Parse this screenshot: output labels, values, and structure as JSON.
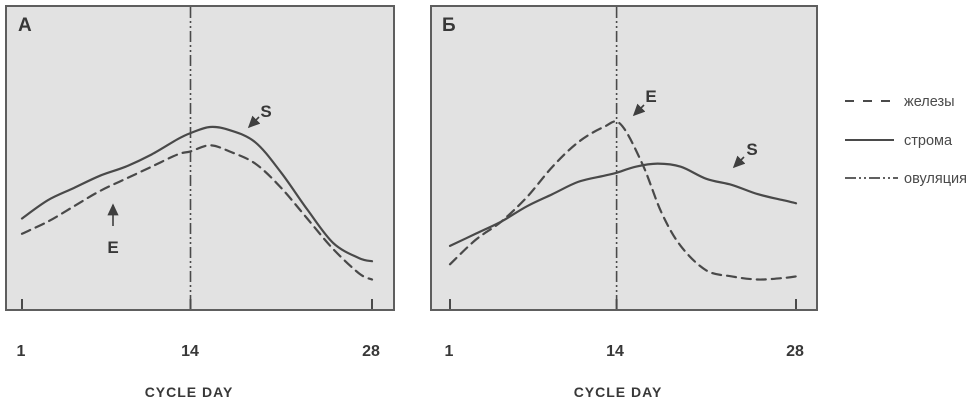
{
  "figure": {
    "legend": {
      "position": "right",
      "items": [
        {
          "label": "железы",
          "style": "dashed"
        },
        {
          "label": "строма",
          "style": "solid"
        },
        {
          "label": "овуляция",
          "style": "dashdot"
        }
      ]
    },
    "colors": {
      "panel_bg": "#e2e2e2",
      "panel_border": "#5e5e5e",
      "line": "#494949",
      "text": "#383838"
    }
  },
  "chart_data": [
    {
      "panel": "А",
      "type": "line",
      "xlabel": "CYCLE DAY",
      "xlim": [
        1,
        28
      ],
      "x_ticks": [
        1,
        14,
        28
      ],
      "ovulation_day": 14,
      "grid": false,
      "ylabel": "",
      "series": [
        {
          "name": "железы",
          "letter": "E",
          "style": "dashed",
          "points": [
            [
              1,
              25
            ],
            [
              3,
              29
            ],
            [
              5,
              34
            ],
            [
              7,
              39
            ],
            [
              9,
              43
            ],
            [
              11,
              47
            ],
            [
              13,
              51
            ],
            [
              14,
              52
            ],
            [
              15.5,
              54
            ],
            [
              17,
              52
            ],
            [
              19,
              48
            ],
            [
              21,
              40
            ],
            [
              23,
              30
            ],
            [
              25,
              20
            ],
            [
              27,
              12
            ],
            [
              28,
              10
            ]
          ]
        },
        {
          "name": "строма",
          "letter": "S",
          "style": "solid",
          "points": [
            [
              1,
              30
            ],
            [
              3,
              36
            ],
            [
              5,
              40
            ],
            [
              7,
              44
            ],
            [
              9,
              47
            ],
            [
              11,
              51
            ],
            [
              13,
              56
            ],
            [
              14,
              58
            ],
            [
              15.5,
              60
            ],
            [
              17,
              59
            ],
            [
              19,
              55
            ],
            [
              21,
              45
            ],
            [
              23,
              33
            ],
            [
              25,
              22
            ],
            [
              27,
              17
            ],
            [
              28,
              16
            ]
          ]
        }
      ]
    },
    {
      "panel": "Б",
      "type": "line",
      "xlabel": "CYCLE DAY",
      "xlim": [
        1,
        28
      ],
      "x_ticks": [
        1,
        14,
        28
      ],
      "ovulation_day": 14,
      "grid": false,
      "ylabel": "",
      "series": [
        {
          "name": "железы",
          "letter": "E",
          "style": "dashed",
          "points": [
            [
              1,
              15
            ],
            [
              3,
              23
            ],
            [
              5,
              29
            ],
            [
              7,
              37
            ],
            [
              9,
              47
            ],
            [
              11,
              55
            ],
            [
              13,
              60
            ],
            [
              14.3,
              61
            ],
            [
              16,
              48
            ],
            [
              17.5,
              32
            ],
            [
              19,
              21
            ],
            [
              21,
              13
            ],
            [
              23,
              11
            ],
            [
              25,
              10
            ],
            [
              27,
              10.5
            ],
            [
              28,
              11
            ]
          ]
        },
        {
          "name": "строма",
          "letter": "S",
          "style": "solid",
          "points": [
            [
              1,
              21
            ],
            [
              3,
              25
            ],
            [
              5,
              29
            ],
            [
              7,
              34
            ],
            [
              9,
              38
            ],
            [
              11,
              42
            ],
            [
              13,
              44
            ],
            [
              14,
              45
            ],
            [
              15.5,
              47
            ],
            [
              17.2,
              48
            ],
            [
              19,
              47
            ],
            [
              21,
              43
            ],
            [
              23,
              41
            ],
            [
              25,
              38
            ],
            [
              27,
              36
            ],
            [
              28,
              35
            ]
          ]
        }
      ]
    }
  ]
}
